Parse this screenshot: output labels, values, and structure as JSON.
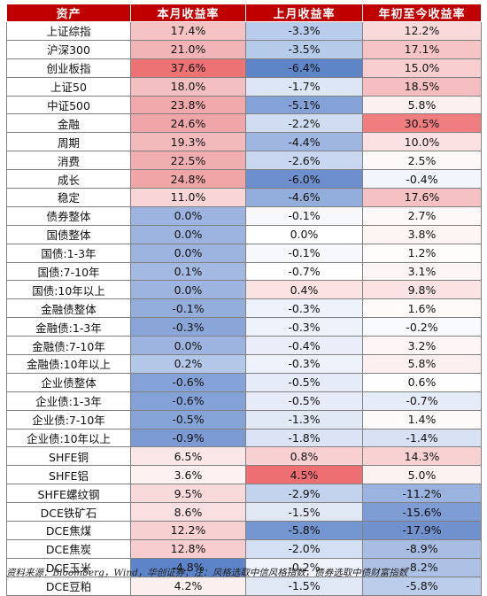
{
  "table": {
    "headers": [
      "资产",
      "本月收益率",
      "上月收益率",
      "年初至今收益率"
    ],
    "rows": [
      {
        "asset": "上证综指",
        "values": [
          "17.4%",
          "-3.3%",
          "12.2%"
        ],
        "colors": [
          "#f5c3c4",
          "#b9ccec",
          "#fad9da"
        ]
      },
      {
        "asset": "沪深300",
        "values": [
          "21.0%",
          "-3.5%",
          "17.1%"
        ],
        "colors": [
          "#f2b4b6",
          "#b6caea",
          "#f6c4c6"
        ]
      },
      {
        "asset": "创业板指",
        "values": [
          "37.6%",
          "-6.4%",
          "15.0%"
        ],
        "colors": [
          "#ec7274",
          "#5f85c9",
          "#f8ced0"
        ]
      },
      {
        "asset": "上证50",
        "values": [
          "18.0%",
          "-1.7%",
          "18.5%"
        ],
        "colors": [
          "#f4bfc1",
          "#dde6f6",
          "#f5bec0"
        ]
      },
      {
        "asset": "中证500",
        "values": [
          "23.8%",
          "-5.1%",
          "5.8%"
        ],
        "colors": [
          "#f1a9ab",
          "#84a2d8",
          "#fdf0f0"
        ]
      },
      {
        "asset": "金融",
        "values": [
          "24.6%",
          "-2.2%",
          "30.5%"
        ],
        "colors": [
          "#f0a6a8",
          "#cfdcf1",
          "#f07e80"
        ]
      },
      {
        "asset": "周期",
        "values": [
          "19.3%",
          "-4.4%",
          "10.0%"
        ],
        "colors": [
          "#f3babc",
          "#9fb6e0",
          "#fbe1e2"
        ]
      },
      {
        "asset": "消费",
        "values": [
          "22.5%",
          "-2.6%",
          "2.5%"
        ],
        "colors": [
          "#f1aeb0",
          "#c8d6ef",
          "#fef9f9"
        ]
      },
      {
        "asset": "成长",
        "values": [
          "24.8%",
          "-6.0%",
          "-0.4%"
        ],
        "colors": [
          "#f0a5a7",
          "#6e8fcd",
          "#f2f5fb"
        ]
      },
      {
        "asset": "稳定",
        "values": [
          "11.0%",
          "-4.6%",
          "17.6%"
        ],
        "colors": [
          "#f8d6d7",
          "#94aedc",
          "#f6c1c3"
        ]
      },
      {
        "asset": "债券整体",
        "values": [
          "0.0%",
          "-0.1%",
          "2.7%"
        ],
        "colors": [
          "#9cb4df",
          "#f7f8fc",
          "#fef8f8"
        ]
      },
      {
        "asset": "国债整体",
        "values": [
          "0.0%",
          "0.0%",
          "3.8%"
        ],
        "colors": [
          "#9cb4df",
          "#ffffff",
          "#fdf4f4"
        ]
      },
      {
        "asset": "国债:1-3年",
        "values": [
          "0.0%",
          "-0.1%",
          "1.2%"
        ],
        "colors": [
          "#9cb4df",
          "#f7f8fc",
          "#fffcfc"
        ]
      },
      {
        "asset": "国债:7-10年",
        "values": [
          "0.1%",
          "-0.7%",
          "3.1%"
        ],
        "colors": [
          "#a3b9e1",
          "#ffffff",
          "#fef6f6"
        ]
      },
      {
        "asset": "国债:10年以上",
        "values": [
          "0.0%",
          "0.4%",
          "9.8%"
        ],
        "colors": [
          "#9cb4df",
          "#fbe3e4",
          "#fbe2e3"
        ]
      },
      {
        "asset": "金融债整体",
        "values": [
          "-0.1%",
          "-0.3%",
          "1.6%"
        ],
        "colors": [
          "#94aedc",
          "#eef2fa",
          "#fffbfb"
        ]
      },
      {
        "asset": "金融债:1-3年",
        "values": [
          "-0.3%",
          "-0.3%",
          "-0.2%"
        ],
        "colors": [
          "#8aa6d9",
          "#eef2fa",
          "#f7f9fd"
        ]
      },
      {
        "asset": "金融债:7-10年",
        "values": [
          "0.0%",
          "-0.4%",
          "3.2%"
        ],
        "colors": [
          "#9cb4df",
          "#e9eef8",
          "#fef6f6"
        ]
      },
      {
        "asset": "金融债:10年以上",
        "values": [
          "0.2%",
          "-0.3%",
          "5.8%"
        ],
        "colors": [
          "#b3c7e8",
          "#eef2fa",
          "#fdf0f0"
        ]
      },
      {
        "asset": "企业债整体",
        "values": [
          "-0.6%",
          "-0.5%",
          "0.6%"
        ],
        "colors": [
          "#84a2d8",
          "#e5ebf7",
          "#fffefe"
        ]
      },
      {
        "asset": "企业债:1-3年",
        "values": [
          "-0.6%",
          "-0.5%",
          "-0.7%"
        ],
        "colors": [
          "#84a2d8",
          "#e5ebf7",
          "#e6ecf7"
        ]
      },
      {
        "asset": "企业债:7-10年",
        "values": [
          "-0.5%",
          "-1.3%",
          "1.4%"
        ],
        "colors": [
          "#87a4d8",
          "#e2e9f6",
          "#fffbfb"
        ]
      },
      {
        "asset": "企业债:10年以上",
        "values": [
          "-0.9%",
          "-1.8%",
          "-1.4%"
        ],
        "colors": [
          "#7c9bd4",
          "#dbe3f4",
          "#d9e2f4"
        ]
      },
      {
        "asset": "SHFE铜",
        "values": [
          "6.5%",
          "0.8%",
          "14.3%"
        ],
        "colors": [
          "#fbe7e8",
          "#f8d0d1",
          "#f8d2d3"
        ]
      },
      {
        "asset": "SHFE铝",
        "values": [
          "3.6%",
          "4.5%",
          "5.0%"
        ],
        "colors": [
          "#fdf1f1",
          "#ee6f72",
          "#fdf2f2"
        ]
      },
      {
        "asset": "SHFE螺纹钢",
        "values": [
          "9.5%",
          "-2.9%",
          "-11.2%"
        ],
        "colors": [
          "#f9dadb",
          "#c3d2ed",
          "#9ab3df"
        ]
      },
      {
        "asset": "DCE铁矿石",
        "values": [
          "8.6%",
          "-1.5%",
          "-15.6%"
        ],
        "colors": [
          "#fadfe0",
          "#e0e8f6",
          "#7e9dd5"
        ]
      },
      {
        "asset": "DCE焦煤",
        "values": [
          "12.2%",
          "-5.8%",
          "-17.9%"
        ],
        "colors": [
          "#f7d0d1",
          "#7597d1",
          "#7090ce"
        ]
      },
      {
        "asset": "DCE焦炭",
        "values": [
          "12.8%",
          "-2.0%",
          "-8.9%"
        ],
        "colors": [
          "#f7cdcf",
          "#d3dff2",
          "#a9bde3"
        ]
      },
      {
        "asset": "DCE玉米",
        "values": [
          "-4.8%",
          "-0.2%",
          "-8.2%"
        ],
        "colors": [
          "#5d84c8",
          "#f0f3fb",
          "#adc1e5"
        ]
      },
      {
        "asset": "DCE豆粕",
        "values": [
          "4.2%",
          "-1.5%",
          "-5.8%"
        ],
        "colors": [
          "#fcefef",
          "#e0e8f6",
          "#bccdeb"
        ]
      }
    ]
  },
  "footnote": "资料来源：Bloomberg，Wind，华创证券；注：风格选取中信风格指数，债券选取中债财富指数"
}
